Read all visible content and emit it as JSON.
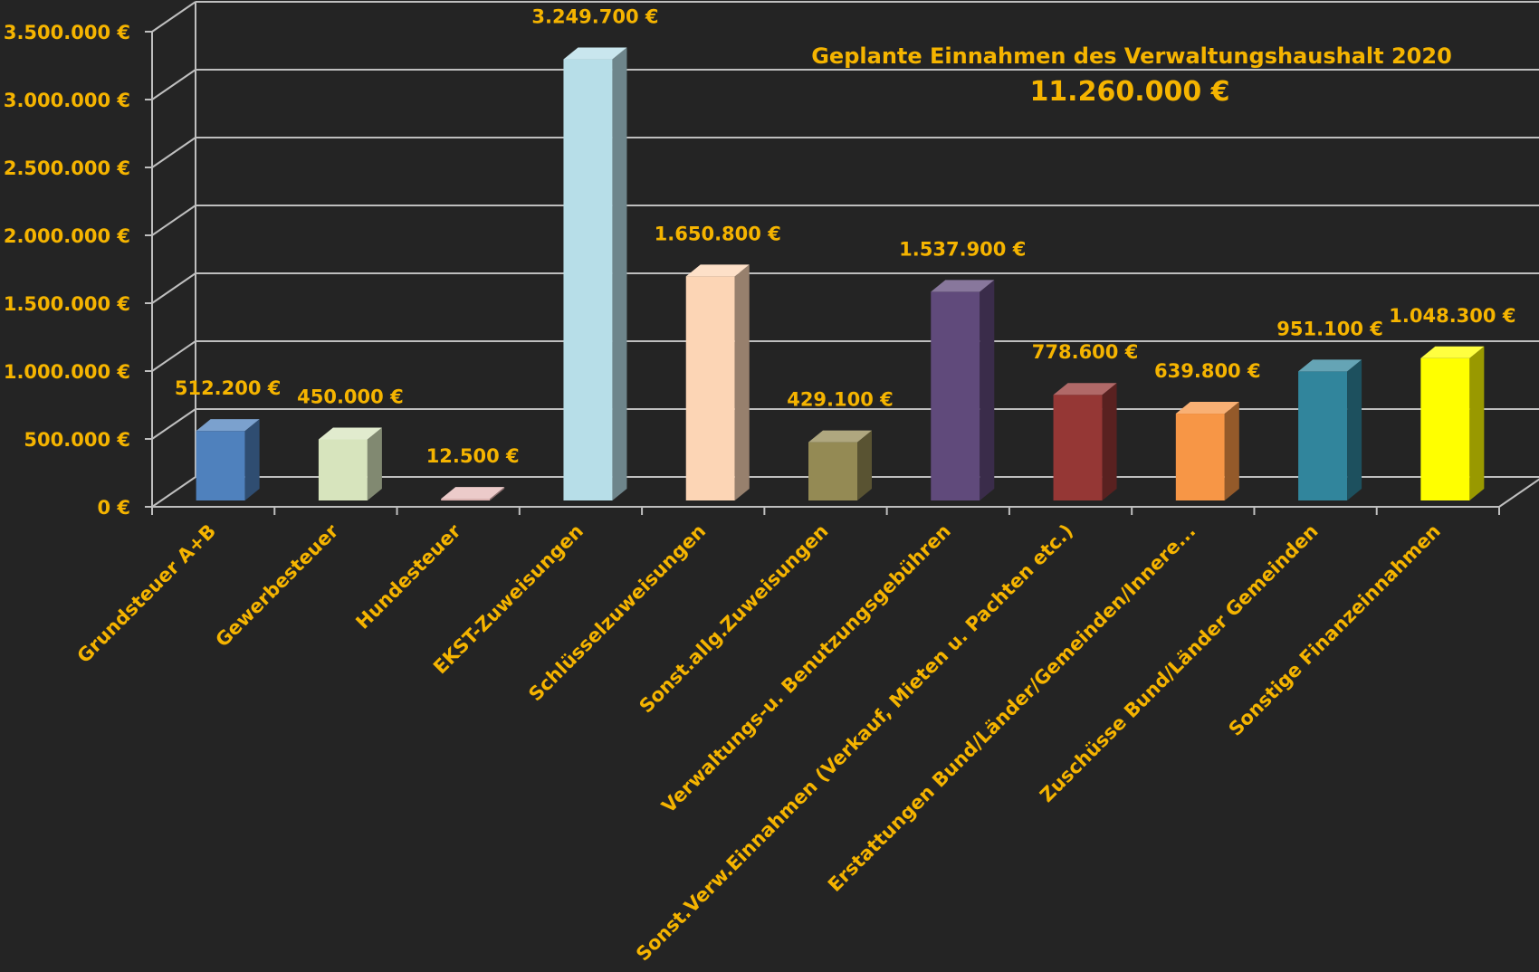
{
  "chart_data": {
    "type": "bar",
    "title": "Geplante Einnahmen des Verwaltungshaushalt 2020",
    "subtitle": "11.260.000 €",
    "categories": [
      "Grundsteuer A+B",
      "Gewerbesteuer",
      "Hundesteuer",
      "EKST-Zuweisungen",
      "Schlüsselzuweisungen",
      "Sonst.allg.Zuweisungen",
      "Verwaltungs-u. Benutzungsgebühren",
      "Sonst.Verw.Einnahmen (Verkauf, Mieten u. Pachten etc.)",
      "Erstattungen Bund/Länder/Gemeinden/Innere...",
      "Zuschüsse Bund/Länder Gemeinden",
      "Sonstige Finanzeinnahmen"
    ],
    "values": [
      512200,
      450000,
      12500,
      3249700,
      1650800,
      429100,
      1537900,
      778600,
      639800,
      951100,
      1048300
    ],
    "value_labels": [
      "512.200 €",
      "450.000 €",
      "12.500 €",
      "3.249.700 €",
      "1.650.800 €",
      "429.100 €",
      "1.537.900 €",
      "778.600 €",
      "639.800 €",
      "951.100 €",
      "1.048.300 €"
    ],
    "colors": [
      "#4f81bd",
      "#d7e4bd",
      "#e6b9b8",
      "#b7dee8",
      "#fcd5b5",
      "#948a54",
      "#604a7b",
      "#953735",
      "#f79646",
      "#31859c",
      "#ffff00"
    ],
    "ylim": [
      0,
      3500000
    ],
    "yticks": [
      0,
      500000,
      1000000,
      1500000,
      2000000,
      2500000,
      3000000,
      3500000
    ],
    "ytick_labels": [
      "0 €",
      "500.000 €",
      "1.000.000 €",
      "1.500.000 €",
      "2.000.000 €",
      "2.500.000 €",
      "3.000.000 €",
      "3.500.000 €"
    ],
    "grid": true,
    "style": "3d-column",
    "background": "#242424",
    "text_color": "#f5b400",
    "grid_color": "#bfbfbf"
  }
}
